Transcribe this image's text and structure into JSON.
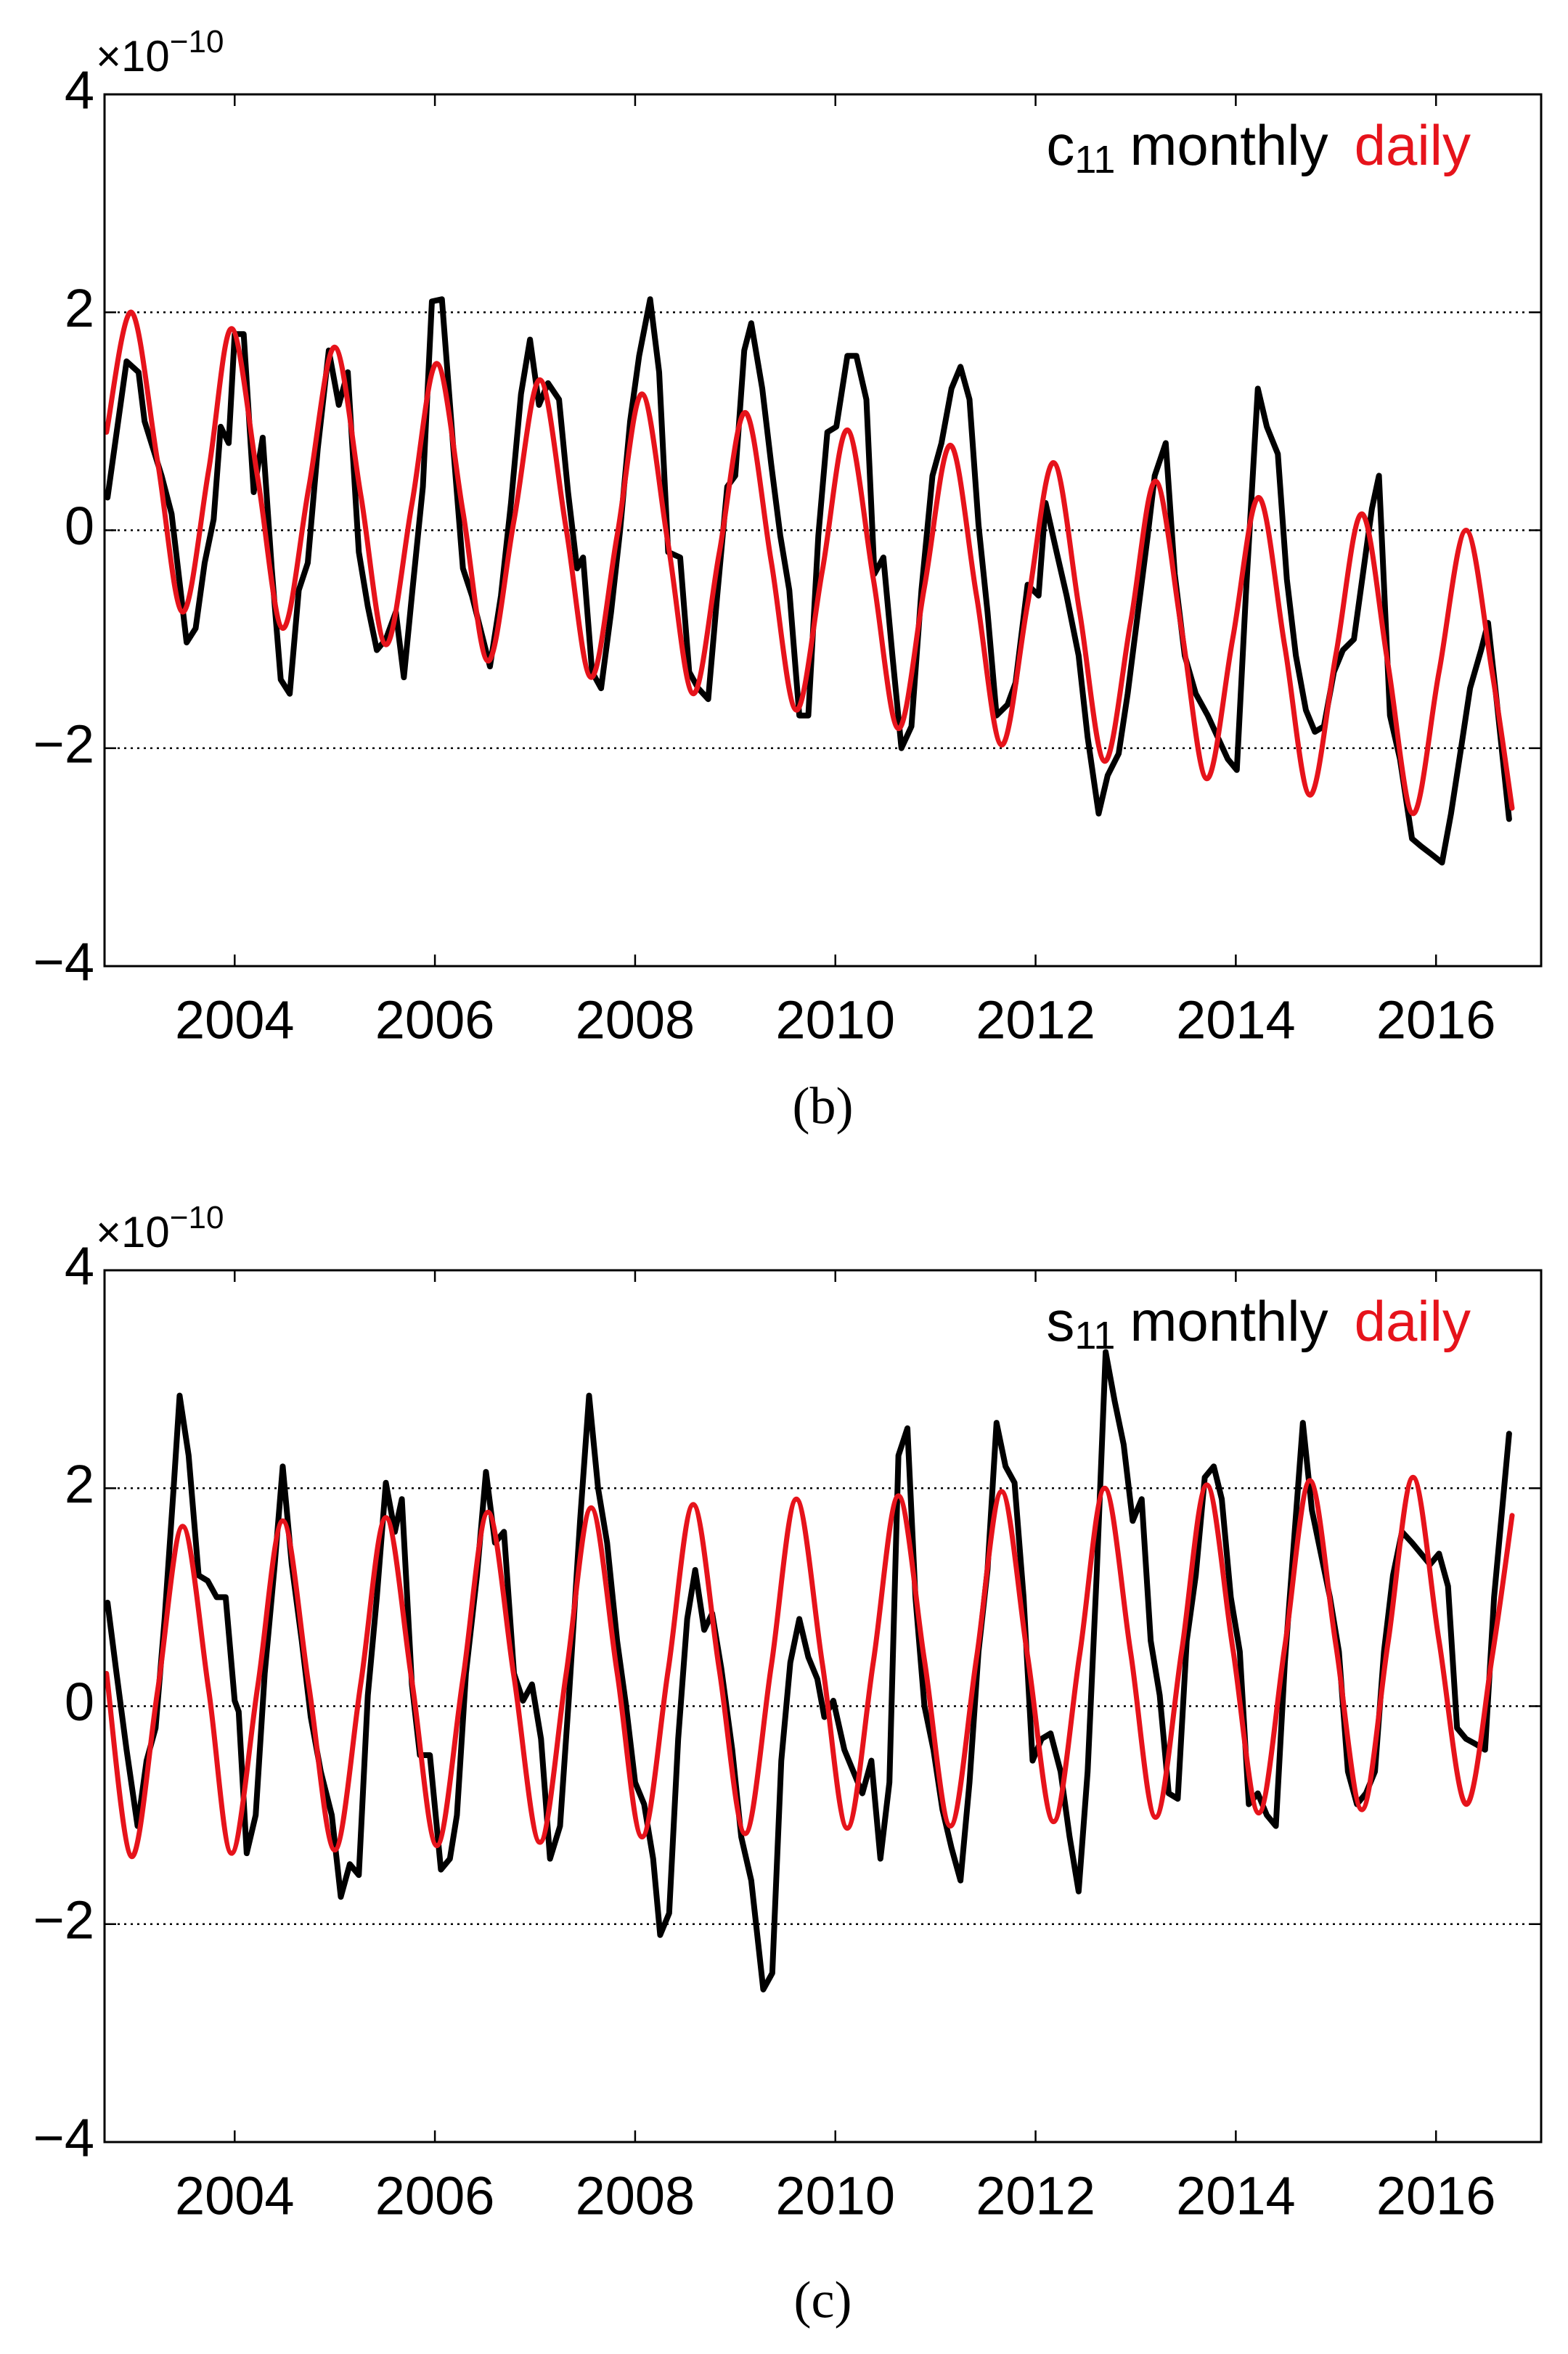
{
  "chart_data": [
    {
      "type": "line",
      "panel_label": "(b)",
      "y_scale": "×10",
      "y_scale_exponent": "−10",
      "legend_prefix": "c",
      "legend_prefix_sub": "11",
      "legend": "upper right",
      "grid": true,
      "xlim": [
        2002.7,
        2017.05
      ],
      "xticks": [
        2004,
        2006,
        2008,
        2010,
        2012,
        2014,
        2016
      ],
      "ylim": [
        -4,
        4
      ],
      "yticks": [
        {
          "value": -4,
          "label": "−4"
        },
        {
          "value": -2,
          "label": "−2"
        },
        0,
        2,
        4
      ],
      "series": [
        {
          "name": "monthly",
          "color": "#000000",
          "smooth": false,
          "x": [
            2002.73,
            2002.92,
            2003.04,
            2003.1,
            2003.27,
            2003.37,
            2003.52,
            2003.61,
            2003.7,
            2003.79,
            2003.86,
            2003.94,
            2004.0,
            2004.09,
            2004.19,
            2004.28,
            2004.37,
            2004.46,
            2004.55,
            2004.64,
            2004.73,
            2004.83,
            2004.94,
            2005.04,
            2005.13,
            2005.24,
            2005.33,
            2005.42,
            2005.51,
            2005.61,
            2005.69,
            2005.77,
            2005.88,
            2005.97,
            2006.07,
            2006.18,
            2006.28,
            2006.37,
            2006.55,
            2006.66,
            2006.76,
            2006.86,
            2006.95,
            2007.04,
            2007.13,
            2007.24,
            2007.33,
            2007.42,
            2007.48,
            2007.57,
            2007.66,
            2007.76,
            2007.85,
            2007.95,
            2008.04,
            2008.15,
            2008.24,
            2008.33,
            2008.45,
            2008.54,
            2008.63,
            2008.73,
            2008.82,
            2008.92,
            2009.0,
            2009.09,
            2009.16,
            2009.27,
            2009.36,
            2009.45,
            2009.54,
            2009.64,
            2009.73,
            2009.83,
            2009.92,
            2010.01,
            2010.12,
            2010.21,
            2010.31,
            2010.39,
            2010.48,
            2010.57,
            2010.66,
            2010.76,
            2010.86,
            2010.97,
            2011.06,
            2011.16,
            2011.25,
            2011.34,
            2011.43,
            2011.52,
            2011.61,
            2011.72,
            2011.8,
            2011.92,
            2012.03,
            2012.1,
            2012.21,
            2012.31,
            2012.43,
            2012.52,
            2012.63,
            2012.72,
            2012.83,
            2012.92,
            2013.03,
            2013.12,
            2013.19,
            2013.3,
            2013.39,
            2013.49,
            2013.6,
            2013.72,
            2013.82,
            2013.92,
            2014.01,
            2014.1,
            2014.22,
            2014.31,
            2014.42,
            2014.51,
            2014.6,
            2014.7,
            2014.79,
            2014.88,
            2014.98,
            2015.07,
            2015.18,
            2015.27,
            2015.36,
            2015.43,
            2015.54,
            2015.64,
            2015.76,
            2015.85,
            2015.95,
            2016.06,
            2016.15,
            2016.25,
            2016.34,
            2016.45,
            2016.52,
            2016.61,
            2016.73
          ],
          "values": [
            0.3,
            1.55,
            1.45,
            1.0,
            0.5,
            0.15,
            -1.03,
            -0.9,
            -0.3,
            0.1,
            0.95,
            0.8,
            1.8,
            1.8,
            0.35,
            0.85,
            -0.35,
            -1.37,
            -1.5,
            -0.55,
            -0.3,
            0.75,
            1.65,
            1.15,
            1.45,
            -0.2,
            -0.7,
            -1.1,
            -1.0,
            -0.75,
            -1.35,
            -0.6,
            0.4,
            2.1,
            2.12,
            0.8,
            -0.35,
            -0.6,
            -1.25,
            -0.6,
            0.25,
            1.25,
            1.75,
            1.15,
            1.35,
            1.2,
            0.35,
            -0.35,
            -0.25,
            -1.3,
            -1.45,
            -0.75,
            0.0,
            1.0,
            1.6,
            2.12,
            1.45,
            -0.2,
            -0.25,
            -1.3,
            -1.45,
            -1.55,
            -0.6,
            0.4,
            0.5,
            1.65,
            1.9,
            1.3,
            0.6,
            -0.05,
            -0.55,
            -1.7,
            -1.7,
            -0.05,
            0.9,
            0.95,
            1.6,
            1.6,
            1.2,
            -0.4,
            -0.25,
            -1.15,
            -2.0,
            -1.8,
            -0.55,
            0.5,
            0.8,
            1.3,
            1.5,
            1.2,
            0.05,
            -0.75,
            -1.7,
            -1.6,
            -1.4,
            -0.5,
            -0.6,
            0.25,
            -0.2,
            -0.6,
            -1.15,
            -1.9,
            -2.6,
            -2.25,
            -2.05,
            -1.5,
            -0.7,
            -0.05,
            0.5,
            0.8,
            -0.4,
            -1.15,
            -1.5,
            -1.7,
            -1.9,
            -2.1,
            -2.2,
            -0.6,
            1.3,
            0.95,
            0.7,
            -0.45,
            -1.15,
            -1.65,
            -1.85,
            -1.8,
            -1.3,
            -1.1,
            -1.0,
            -0.4,
            0.2,
            0.5,
            -1.7,
            -2.1,
            -2.83,
            -2.9,
            -2.97,
            -3.05,
            -2.6,
            -2.0,
            -1.45,
            -1.1,
            -0.85,
            -1.6,
            -2.65
          ]
        },
        {
          "name": "daily",
          "color": "#e6131b",
          "smooth": true,
          "x": [
            2002.72,
            2002.97,
            2003.23,
            2003.48,
            2003.74,
            2003.97,
            2004.23,
            2004.48,
            2004.74,
            2005.0,
            2005.26,
            2005.51,
            2005.77,
            2006.02,
            2006.28,
            2006.53,
            2006.79,
            2007.05,
            2007.31,
            2007.56,
            2007.82,
            2008.07,
            2008.33,
            2008.58,
            2008.84,
            2009.1,
            2009.36,
            2009.61,
            2009.87,
            2010.12,
            2010.38,
            2010.63,
            2010.89,
            2011.15,
            2011.41,
            2011.66,
            2011.92,
            2012.18,
            2012.44,
            2012.69,
            2012.95,
            2013.2,
            2013.46,
            2013.71,
            2013.97,
            2014.23,
            2014.49,
            2014.74,
            2015.0,
            2015.26,
            2015.52,
            2015.77,
            2016.03,
            2016.3,
            2016.56,
            2016.76
          ],
          "values": [
            0.9,
            2.0,
            0.63,
            -0.75,
            0.55,
            1.85,
            0.48,
            -0.9,
            0.39,
            1.68,
            0.32,
            -1.05,
            0.24,
            1.53,
            0.17,
            -1.2,
            0.09,
            1.38,
            0.02,
            -1.35,
            -0.05,
            1.25,
            -0.13,
            -1.5,
            -0.21,
            1.08,
            -0.29,
            -1.65,
            -0.37,
            0.92,
            -0.45,
            -1.82,
            -0.52,
            0.78,
            -0.6,
            -1.97,
            -0.68,
            0.62,
            -0.75,
            -2.12,
            -0.84,
            0.45,
            -0.92,
            -2.28,
            -0.99,
            0.3,
            -1.07,
            -2.43,
            -1.14,
            0.15,
            -1.23,
            -2.6,
            -1.3,
            0.0,
            -1.3,
            -2.55
          ]
        }
      ]
    },
    {
      "type": "line",
      "panel_label": "(c)",
      "y_scale": "×10",
      "y_scale_exponent": "−10",
      "legend_prefix": "s",
      "legend_prefix_sub": "11",
      "legend": "upper right",
      "grid": true,
      "xlim": [
        2002.7,
        2017.05
      ],
      "xticks": [
        2004,
        2006,
        2008,
        2010,
        2012,
        2014,
        2016
      ],
      "ylim": [
        -4,
        4
      ],
      "yticks": [
        {
          "value": -4,
          "label": "−4"
        },
        {
          "value": -2,
          "label": "−2"
        },
        0,
        2,
        4
      ],
      "series": [
        {
          "name": "monthly",
          "color": "#000000",
          "smooth": false,
          "x": [
            2002.73,
            2002.82,
            2002.92,
            2003.03,
            2003.12,
            2003.21,
            2003.3,
            2003.39,
            2003.45,
            2003.54,
            2003.64,
            2003.73,
            2003.82,
            2003.91,
            2004.0,
            2004.04,
            2004.12,
            2004.21,
            2004.3,
            2004.4,
            2004.48,
            2004.57,
            2004.67,
            2004.76,
            2004.86,
            2004.97,
            2005.06,
            2005.15,
            2005.24,
            2005.33,
            2005.42,
            2005.51,
            2005.6,
            2005.67,
            2005.77,
            2005.85,
            2005.95,
            2006.06,
            2006.15,
            2006.22,
            2006.31,
            2006.42,
            2006.51,
            2006.6,
            2006.69,
            2006.79,
            2006.88,
            2006.97,
            2007.06,
            2007.15,
            2007.25,
            2007.34,
            2007.45,
            2007.54,
            2007.63,
            2007.72,
            2007.82,
            2007.91,
            2008.0,
            2008.09,
            2008.18,
            2008.25,
            2008.34,
            2008.43,
            2008.52,
            2008.6,
            2008.69,
            2008.77,
            2008.86,
            2008.97,
            2009.06,
            2009.16,
            2009.28,
            2009.37,
            2009.46,
            2009.55,
            2009.64,
            2009.73,
            2009.82,
            2009.89,
            2009.98,
            2010.09,
            2010.18,
            2010.27,
            2010.36,
            2010.45,
            2010.54,
            2010.63,
            2010.72,
            2010.8,
            2010.89,
            2010.98,
            2011.07,
            2011.16,
            2011.25,
            2011.34,
            2011.43,
            2011.52,
            2011.61,
            2011.7,
            2011.79,
            2011.88,
            2011.97,
            2012.06,
            2012.15,
            2012.25,
            2012.34,
            2012.43,
            2012.52,
            2012.61,
            2012.7,
            2012.79,
            2012.88,
            2012.97,
            2013.06,
            2013.15,
            2013.24,
            2013.33,
            2013.42,
            2013.51,
            2013.6,
            2013.69,
            2013.78,
            2013.86,
            2013.95,
            2014.04,
            2014.13,
            2014.22,
            2014.31,
            2014.4,
            2014.49,
            2014.58,
            2014.67,
            2014.76,
            2014.85,
            2014.94,
            2015.03,
            2015.12,
            2015.21,
            2015.3,
            2015.39,
            2015.48,
            2015.57,
            2015.66,
            2015.76,
            2015.85,
            2015.94,
            2016.03,
            2016.12,
            2016.21,
            2016.3,
            2016.4,
            2016.49,
            2016.58,
            2016.73
          ],
          "values": [
            0.95,
            0.3,
            -0.4,
            -1.1,
            -0.5,
            -0.2,
            0.8,
            2.0,
            2.85,
            2.3,
            1.2,
            1.15,
            1.0,
            1.0,
            0.05,
            -0.05,
            -1.35,
            -1.0,
            0.3,
            1.3,
            2.2,
            1.3,
            0.6,
            -0.1,
            -0.6,
            -1.0,
            -1.75,
            -1.45,
            -1.55,
            0.1,
            1.0,
            2.05,
            1.6,
            1.9,
            0.2,
            -0.45,
            -0.45,
            -1.5,
            -1.4,
            -1.0,
            0.3,
            1.2,
            2.15,
            1.5,
            1.6,
            0.3,
            0.05,
            0.2,
            -0.3,
            -1.4,
            -1.1,
            0.1,
            1.7,
            2.85,
            2.0,
            1.5,
            0.6,
            0.0,
            -0.7,
            -0.9,
            -1.4,
            -2.1,
            -1.9,
            -0.3,
            0.8,
            1.25,
            0.7,
            0.85,
            0.35,
            -0.4,
            -1.2,
            -1.6,
            -2.6,
            -2.45,
            -0.5,
            0.4,
            0.8,
            0.45,
            0.25,
            -0.1,
            0.05,
            -0.4,
            -0.6,
            -0.8,
            -0.5,
            -1.4,
            -0.7,
            2.3,
            2.55,
            1.0,
            0.0,
            -0.4,
            -0.95,
            -1.3,
            -1.6,
            -0.7,
            0.5,
            1.25,
            2.6,
            2.2,
            2.05,
            1.0,
            -0.5,
            -0.3,
            -0.25,
            -0.6,
            -1.2,
            -1.7,
            -0.6,
            1.2,
            3.25,
            2.8,
            2.4,
            1.7,
            1.9,
            0.6,
            0.1,
            -0.8,
            -0.85,
            0.6,
            1.2,
            2.1,
            2.2,
            1.9,
            1.0,
            0.5,
            -0.9,
            -0.8,
            -1.0,
            -1.1,
            0.4,
            1.5,
            2.6,
            1.8,
            1.4,
            1.0,
            0.5,
            -0.6,
            -0.9,
            -0.8,
            -0.6,
            0.5,
            1.2,
            1.6,
            1.5,
            1.4,
            1.3,
            1.4,
            1.1,
            -0.2,
            -0.3,
            -0.35,
            -0.4,
            1.0,
            2.5
          ]
        },
        {
          "name": "daily",
          "color": "#e6131b",
          "smooth": true,
          "x": [
            2002.72,
            2002.97,
            2003.23,
            2003.48,
            2003.74,
            2003.97,
            2004.23,
            2004.48,
            2004.74,
            2005.0,
            2005.26,
            2005.51,
            2005.77,
            2006.02,
            2006.28,
            2006.53,
            2006.79,
            2007.05,
            2007.31,
            2007.56,
            2007.82,
            2008.07,
            2008.33,
            2008.58,
            2008.84,
            2009.1,
            2009.36,
            2009.61,
            2009.87,
            2010.12,
            2010.38,
            2010.63,
            2010.89,
            2011.15,
            2011.41,
            2011.66,
            2011.92,
            2012.18,
            2012.44,
            2012.69,
            2012.95,
            2013.2,
            2013.46,
            2013.71,
            2013.97,
            2014.23,
            2014.49,
            2014.74,
            2015.0,
            2015.26,
            2015.52,
            2015.77,
            2016.03,
            2016.3,
            2016.56,
            2016.76
          ],
          "values": [
            0.3,
            -1.38,
            0.14,
            1.65,
            0.15,
            -1.35,
            0.18,
            1.7,
            0.19,
            -1.32,
            0.21,
            1.73,
            0.23,
            -1.28,
            0.25,
            1.78,
            0.27,
            -1.25,
            0.29,
            1.82,
            0.31,
            -1.2,
            0.33,
            1.85,
            0.34,
            -1.17,
            0.37,
            1.9,
            0.39,
            -1.12,
            0.41,
            1.93,
            0.42,
            -1.1,
            0.44,
            1.97,
            0.46,
            -1.06,
            0.47,
            2.0,
            0.49,
            -1.02,
            0.51,
            2.03,
            0.53,
            -0.98,
            0.55,
            2.07,
            0.56,
            -0.95,
            0.58,
            2.1,
            0.6,
            -0.9,
            0.45,
            1.75
          ]
        }
      ]
    }
  ]
}
